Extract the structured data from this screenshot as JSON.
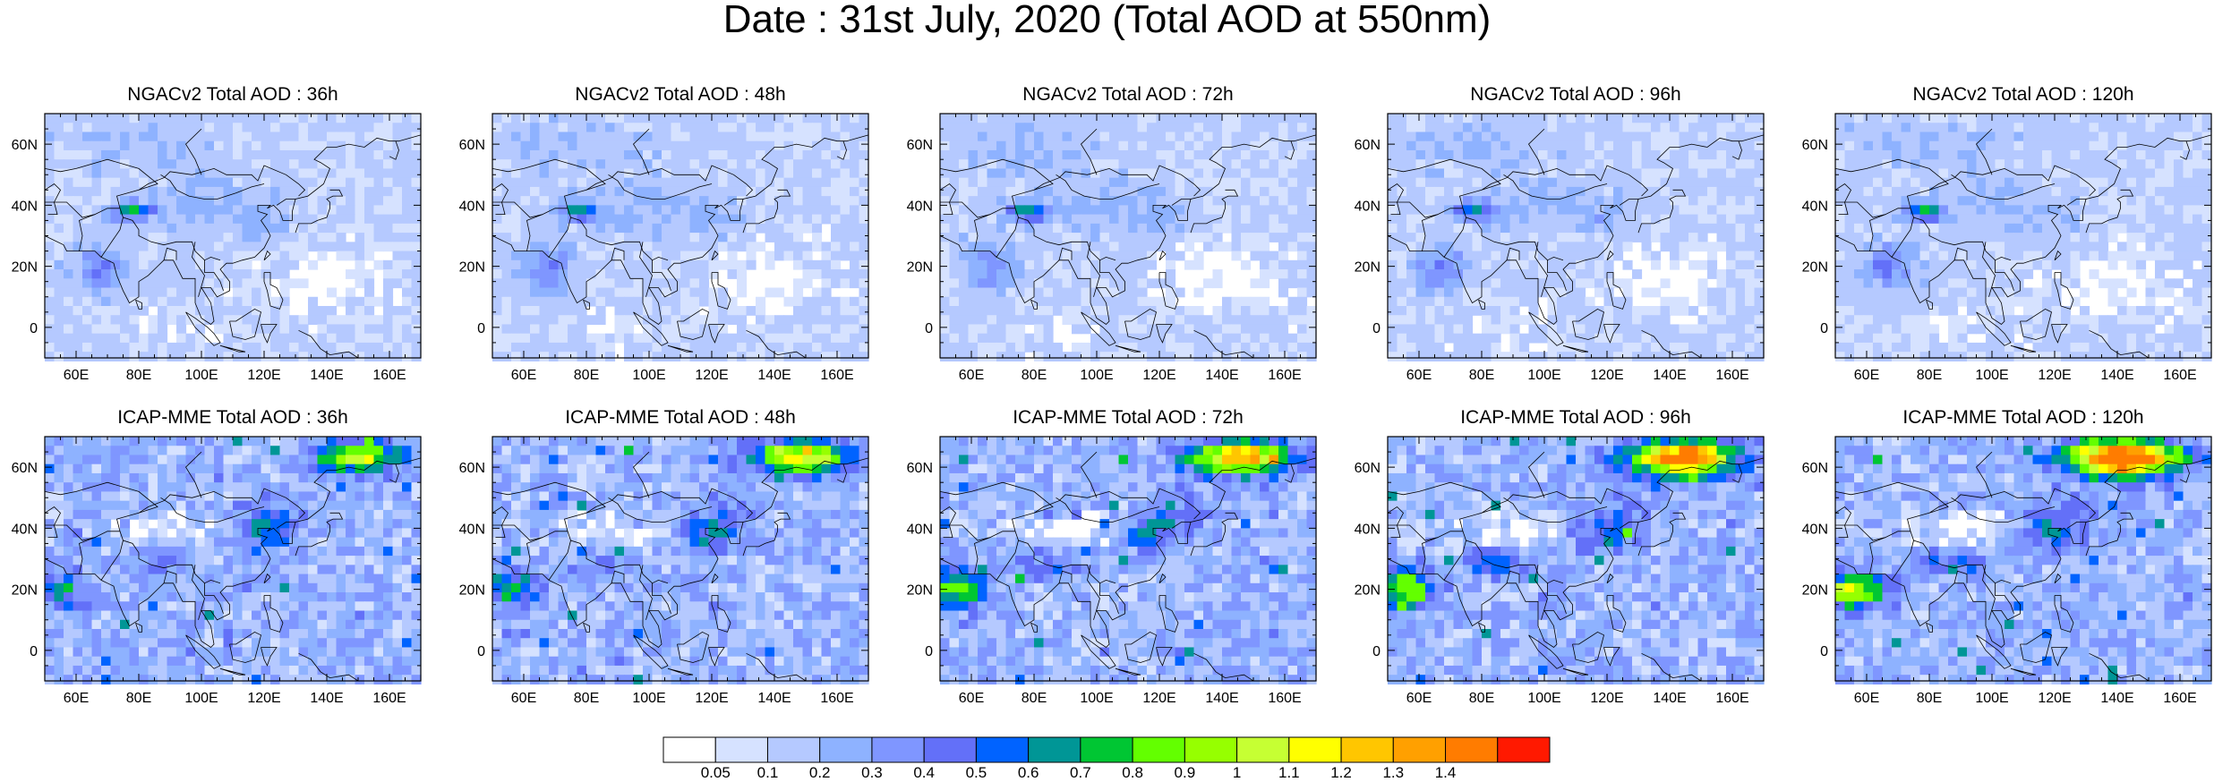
{
  "title": "Date : 31st July, 2020 (Total AOD at 550nm)",
  "rows": [
    {
      "model": "NGACv2",
      "panels": [
        {
          "title": "NGACv2 Total AOD : 36h",
          "lead": "36h"
        },
        {
          "title": "NGACv2 Total AOD : 48h",
          "lead": "48h"
        },
        {
          "title": "NGACv2 Total AOD : 72h",
          "lead": "72h"
        },
        {
          "title": "NGACv2 Total AOD : 96h",
          "lead": "96h"
        },
        {
          "title": "NGACv2 Total AOD : 120h",
          "lead": "120h"
        }
      ]
    },
    {
      "model": "ICAP-MME",
      "panels": [
        {
          "title": "ICAP-MME Total AOD : 36h",
          "lead": "36h"
        },
        {
          "title": "ICAP-MME Total AOD : 48h",
          "lead": "48h"
        },
        {
          "title": "ICAP-MME Total AOD : 72h",
          "lead": "72h"
        },
        {
          "title": "ICAP-MME Total AOD : 96h",
          "lead": "96h"
        },
        {
          "title": "ICAP-MME Total AOD : 120h",
          "lead": "120h"
        }
      ]
    }
  ],
  "map_extent": {
    "lon": [
      50,
      170
    ],
    "lat": [
      -10,
      70
    ]
  },
  "lon_ticks": [
    "60E",
    "80E",
    "100E",
    "120E",
    "140E",
    "160E"
  ],
  "lat_ticks": [
    "60N",
    "40N",
    "20N",
    "0"
  ],
  "colorbar": {
    "labels": [
      "0.05",
      "0.1",
      "0.2",
      "0.3",
      "0.4",
      "0.5",
      "0.6",
      "0.7",
      "0.8",
      "0.9",
      "1",
      "1.1",
      "1.2",
      "1.3",
      "1.4"
    ],
    "colors": [
      "#ffffff",
      "#d6e2ff",
      "#b5c9ff",
      "#8eb2ff",
      "#7f96ff",
      "#6370f8",
      "#0063ff",
      "#009696",
      "#00c633",
      "#63ff00",
      "#96ff00",
      "#c6ff33",
      "#ffff00",
      "#ffc600",
      "#ffa000",
      "#ff7c00",
      "#ff1900"
    ]
  }
}
